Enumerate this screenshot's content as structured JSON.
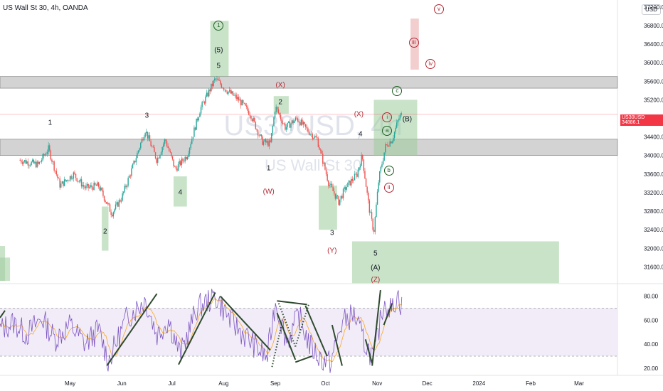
{
  "header": {
    "symbol_line": "US Wall St 30, 4h, OANDA",
    "currency_button": "USD"
  },
  "price_tag": {
    "symbol": "US30USD",
    "value": "34886.1"
  },
  "watermark": {
    "symbol": "US30USD, 4h",
    "name": "US Wall St 30"
  },
  "colors": {
    "up": "#26a69a",
    "down": "#ef5350",
    "zone_green": "#9ccc9c",
    "zone_gray": "#9e9e9e",
    "zone_red": "#e8a5a5",
    "rsi_line": "#7e57c2",
    "rsi_ma": "#f9a825",
    "rsi_band": "#ede7f6",
    "trend_line": "#2e4a2e"
  },
  "chart_data": [
    {
      "type": "candlestick",
      "title": "US Wall St 30, 4h, OANDA",
      "y_axis": {
        "ticks": [
          31600,
          32000,
          32400,
          32800,
          33200,
          33600,
          34000,
          34400,
          34800,
          35200,
          35600,
          36000,
          36400,
          36800,
          37200
        ],
        "tick_labels": [
          "31600.0",
          "32000.0",
          "32400.0",
          "32800.0",
          "33200.0",
          "33600.0",
          "34000.0",
          "34400.0",
          "34800.0",
          "35200.0",
          "35600.0",
          "36000.0",
          "36400.0",
          "36800.0",
          "37200.0"
        ],
        "range": [
          31300,
          37350
        ]
      },
      "x_axis": {
        "tick_labels": [
          "May",
          "Jun",
          "Jul",
          "Aug",
          "Sep",
          "Oct",
          "Nov",
          "Dec",
          "2024",
          "Feb",
          "Mar"
        ]
      },
      "price_path": [
        {
          "date": "2023-04-01",
          "value": 33900
        },
        {
          "date": "2023-04-12",
          "value": 33800
        },
        {
          "date": "2023-04-18",
          "value": 34150
        },
        {
          "date": "2023-04-25",
          "value": 33350
        },
        {
          "date": "2023-05-03",
          "value": 33600
        },
        {
          "date": "2023-05-10",
          "value": 33300
        },
        {
          "date": "2023-05-18",
          "value": 33350
        },
        {
          "date": "2023-05-26",
          "value": 32750
        },
        {
          "date": "2023-06-01",
          "value": 33100
        },
        {
          "date": "2023-06-08",
          "value": 33800
        },
        {
          "date": "2023-06-15",
          "value": 34550
        },
        {
          "date": "2023-06-22",
          "value": 33900
        },
        {
          "date": "2023-06-27",
          "value": 34350
        },
        {
          "date": "2023-07-03",
          "value": 33700
        },
        {
          "date": "2023-07-10",
          "value": 34000
        },
        {
          "date": "2023-07-18",
          "value": 35000
        },
        {
          "date": "2023-07-27",
          "value": 35650
        },
        {
          "date": "2023-08-03",
          "value": 35400
        },
        {
          "date": "2023-08-10",
          "value": 35200
        },
        {
          "date": "2023-08-17",
          "value": 34900
        },
        {
          "date": "2023-08-24",
          "value": 34300
        },
        {
          "date": "2023-08-29",
          "value": 34250
        },
        {
          "date": "2023-09-01",
          "value": 35050
        },
        {
          "date": "2023-09-07",
          "value": 34600
        },
        {
          "date": "2023-09-14",
          "value": 34800
        },
        {
          "date": "2023-09-20",
          "value": 34550
        },
        {
          "date": "2023-09-26",
          "value": 34350
        },
        {
          "date": "2023-10-03",
          "value": 33400
        },
        {
          "date": "2023-10-09",
          "value": 33000
        },
        {
          "date": "2023-10-13",
          "value": 33300
        },
        {
          "date": "2023-10-20",
          "value": 33600
        },
        {
          "date": "2023-10-23",
          "value": 34000
        },
        {
          "date": "2023-10-27",
          "value": 32900
        },
        {
          "date": "2023-10-30",
          "value": 32350
        },
        {
          "date": "2023-11-02",
          "value": 33500
        },
        {
          "date": "2023-11-06",
          "value": 34200
        },
        {
          "date": "2023-11-10",
          "value": 34350
        },
        {
          "date": "2023-11-14",
          "value": 34800
        },
        {
          "date": "2023-11-16",
          "value": 34900
        }
      ],
      "zones": [
        {
          "name": "gray-band-upper",
          "price_from": 35450,
          "price_to": 35700,
          "color": "gray"
        },
        {
          "name": "gray-band-lower",
          "price_from": 34000,
          "price_to": 34350,
          "color": "gray"
        },
        {
          "name": "wave-1-circle-top-box",
          "date_from": "2023-07-24",
          "date_to": "2023-08-04",
          "price_from": 35700,
          "price_to": 36900,
          "color": "green"
        },
        {
          "name": "wave-4-box",
          "date_from": "2023-07-02",
          "date_to": "2023-07-10",
          "price_from": 32900,
          "price_to": 33550,
          "color": "green"
        },
        {
          "name": "wave-2-box",
          "date_from": "2023-05-20",
          "date_to": "2023-05-24",
          "price_from": 31950,
          "price_to": 32900,
          "color": "green"
        },
        {
          "name": "x-wave-2-box",
          "date_from": "2023-08-31",
          "date_to": "2023-09-09",
          "price_from": 34900,
          "price_to": 35280,
          "color": "green"
        },
        {
          "name": "y-wave-3-box",
          "date_from": "2023-09-27",
          "date_to": "2023-10-08",
          "price_from": 32400,
          "price_to": 33350,
          "color": "green"
        },
        {
          "name": "b-wave-box",
          "date_from": "2023-10-30",
          "date_to": "2023-11-25",
          "price_from": 34000,
          "price_to": 35200,
          "color": "green"
        },
        {
          "name": "z-target-box",
          "date_from": "2023-10-17",
          "date_to": "2024-02-18",
          "price_from": 31250,
          "price_to": 32150,
          "color": "green"
        },
        {
          "name": "iii-target-box",
          "date_from": "2023-11-21",
          "date_to": "2023-11-26",
          "price_from": 35850,
          "price_to": 36950,
          "color": "red"
        },
        {
          "name": "left-box-a",
          "date_from": "2023-03-20",
          "date_to": "2023-03-23",
          "price_from": 31300,
          "price_to": 32050,
          "color": "green"
        },
        {
          "name": "left-box-b",
          "date_from": "2023-03-20",
          "date_to": "2023-03-26",
          "price_from": 31300,
          "price_to": 31800,
          "color": "green"
        }
      ],
      "wave_labels": [
        {
          "text": "1",
          "date": "2023-04-19",
          "price": 34700,
          "style": "plain"
        },
        {
          "text": "2",
          "date": "2023-05-22",
          "price": 32350,
          "style": "plain"
        },
        {
          "text": "3",
          "date": "2023-06-16",
          "price": 34850,
          "style": "plain"
        },
        {
          "text": "4",
          "date": "2023-07-06",
          "price": 33200,
          "style": "plain"
        },
        {
          "text": "1",
          "date": "2023-07-29",
          "price": 36800,
          "style": "circle-green"
        },
        {
          "text": "(5)",
          "date": "2023-07-29",
          "price": 36270,
          "style": "plain"
        },
        {
          "text": "5",
          "date": "2023-07-29",
          "price": 35920,
          "style": "plain"
        },
        {
          "text": "(X)",
          "date": "2023-09-04",
          "price": 35510,
          "style": "red"
        },
        {
          "text": "2",
          "date": "2023-09-04",
          "price": 35140,
          "style": "plain"
        },
        {
          "text": "1",
          "date": "2023-08-28",
          "price": 33720,
          "style": "plain"
        },
        {
          "text": "(W)",
          "date": "2023-08-28",
          "price": 33210,
          "style": "red"
        },
        {
          "text": "3",
          "date": "2023-10-05",
          "price": 32320,
          "style": "plain"
        },
        {
          "text": "(Y)",
          "date": "2023-10-05",
          "price": 31950,
          "style": "red"
        },
        {
          "text": "(X)",
          "date": "2023-10-21",
          "price": 34880,
          "style": "red"
        },
        {
          "text": "4",
          "date": "2023-10-22",
          "price": 34460,
          "style": "plain"
        },
        {
          "text": "5",
          "date": "2023-10-31",
          "price": 31880,
          "style": "plain"
        },
        {
          "text": "(A)",
          "date": "2023-10-31",
          "price": 31580,
          "style": "plain"
        },
        {
          "text": "(Z)",
          "date": "2023-10-31",
          "price": 31320,
          "style": "red"
        },
        {
          "text": "i",
          "date": "2023-11-07",
          "price": 34830,
          "style": "circle-red"
        },
        {
          "text": "a",
          "date": "2023-11-07",
          "price": 34530,
          "style": "circle-green"
        },
        {
          "text": "(B)",
          "date": "2023-11-19",
          "price": 34770,
          "style": "plain"
        },
        {
          "text": "c",
          "date": "2023-11-13",
          "price": 35390,
          "style": "circle-green"
        },
        {
          "text": "b",
          "date": "2023-11-08",
          "price": 33680,
          "style": "circle-green"
        },
        {
          "text": "ii",
          "date": "2023-11-08",
          "price": 33300,
          "style": "circle-red"
        },
        {
          "text": "iii",
          "date": "2023-11-23",
          "price": 36430,
          "style": "circle-red"
        },
        {
          "text": "iv",
          "date": "2023-12-03",
          "price": 35970,
          "style": "circle-red"
        },
        {
          "text": "v",
          "date": "2023-12-08",
          "price": 37150,
          "style": "circle-red"
        }
      ],
      "current_price": 34886.1
    },
    {
      "type": "line",
      "title": "",
      "y_axis": {
        "ticks": [
          20,
          40,
          60,
          80
        ],
        "tick_labels": [
          "20.00",
          "40.00",
          "60.00",
          "80.00"
        ],
        "range": [
          14,
          88
        ]
      },
      "bands": {
        "upper": 70,
        "lower": 30
      },
      "rsi_path": [
        {
          "date": "2023-03-20",
          "value": 52
        },
        {
          "date": "2023-03-28",
          "value": 58
        },
        {
          "date": "2023-04-05",
          "value": 48
        },
        {
          "date": "2023-04-14",
          "value": 62
        },
        {
          "date": "2023-04-22",
          "value": 44
        },
        {
          "date": "2023-05-01",
          "value": 56
        },
        {
          "date": "2023-05-10",
          "value": 40
        },
        {
          "date": "2023-05-18",
          "value": 52
        },
        {
          "date": "2023-05-24",
          "value": 26
        },
        {
          "date": "2023-06-04",
          "value": 62
        },
        {
          "date": "2023-06-15",
          "value": 77
        },
        {
          "date": "2023-06-22",
          "value": 48
        },
        {
          "date": "2023-06-29",
          "value": 60
        },
        {
          "date": "2023-07-06",
          "value": 31
        },
        {
          "date": "2023-07-16",
          "value": 70
        },
        {
          "date": "2023-07-27",
          "value": 80
        },
        {
          "date": "2023-08-06",
          "value": 58
        },
        {
          "date": "2023-08-16",
          "value": 44
        },
        {
          "date": "2023-08-27",
          "value": 28
        },
        {
          "date": "2023-09-01",
          "value": 75
        },
        {
          "date": "2023-09-08",
          "value": 42
        },
        {
          "date": "2023-09-15",
          "value": 64
        },
        {
          "date": "2023-09-22",
          "value": 38
        },
        {
          "date": "2023-09-28",
          "value": 28
        },
        {
          "date": "2023-10-04",
          "value": 24
        },
        {
          "date": "2023-10-11",
          "value": 58
        },
        {
          "date": "2023-10-18",
          "value": 65
        },
        {
          "date": "2023-10-24",
          "value": 42
        },
        {
          "date": "2023-10-30",
          "value": 28
        },
        {
          "date": "2023-11-05",
          "value": 76
        },
        {
          "date": "2023-11-10",
          "value": 68
        },
        {
          "date": "2023-11-13",
          "value": 82
        },
        {
          "date": "2023-11-16",
          "value": 70
        }
      ],
      "trend_lines": [
        {
          "from": {
            "date": "2023-05-23",
            "value": 22
          },
          "to": {
            "date": "2023-06-22",
            "value": 82
          },
          "style": "solid"
        },
        {
          "from": {
            "date": "2023-07-05",
            "value": 23
          },
          "to": {
            "date": "2023-07-27",
            "value": 83
          },
          "style": "solid"
        },
        {
          "from": {
            "date": "2023-07-30",
            "value": 80
          },
          "to": {
            "date": "2023-08-29",
            "value": 35
          },
          "style": "solid"
        },
        {
          "from": {
            "date": "2023-09-02",
            "value": 76
          },
          "to": {
            "date": "2023-09-20",
            "value": 73
          },
          "style": "solid"
        },
        {
          "from": {
            "date": "2023-09-02",
            "value": 66
          },
          "to": {
            "date": "2023-09-13",
            "value": 27
          },
          "style": "solid"
        },
        {
          "from": {
            "date": "2023-09-13",
            "value": 25
          },
          "to": {
            "date": "2023-09-23",
            "value": 30
          },
          "style": "solid"
        },
        {
          "from": {
            "date": "2023-09-19",
            "value": 72
          },
          "to": {
            "date": "2023-10-02",
            "value": 30
          },
          "style": "solid"
        },
        {
          "from": {
            "date": "2023-10-05",
            "value": 56
          },
          "to": {
            "date": "2023-10-11",
            "value": 22
          },
          "style": "solid"
        },
        {
          "from": {
            "date": "2023-10-25",
            "value": 44
          },
          "to": {
            "date": "2023-10-29",
            "value": 24
          },
          "style": "solid"
        },
        {
          "from": {
            "date": "2023-10-29",
            "value": 22
          },
          "to": {
            "date": "2023-11-03",
            "value": 85
          },
          "style": "solid"
        },
        {
          "from": {
            "date": "2023-11-05",
            "value": 56
          },
          "to": {
            "date": "2023-11-10",
            "value": 74
          },
          "style": "solid"
        },
        {
          "from": {
            "date": "2023-08-30",
            "value": 21
          },
          "to": {
            "date": "2023-09-05",
            "value": 58
          },
          "style": "dotted"
        },
        {
          "from": {
            "date": "2023-09-03",
            "value": 74
          },
          "to": {
            "date": "2023-09-13",
            "value": 38
          },
          "style": "dotted"
        },
        {
          "from": {
            "date": "2023-09-13",
            "value": 38
          },
          "to": {
            "date": "2023-09-21",
            "value": 73
          },
          "style": "dotted"
        },
        {
          "from": {
            "date": "2023-03-20",
            "value": 62
          },
          "to": {
            "date": "2023-03-23",
            "value": 68
          },
          "style": "solid"
        }
      ]
    }
  ]
}
